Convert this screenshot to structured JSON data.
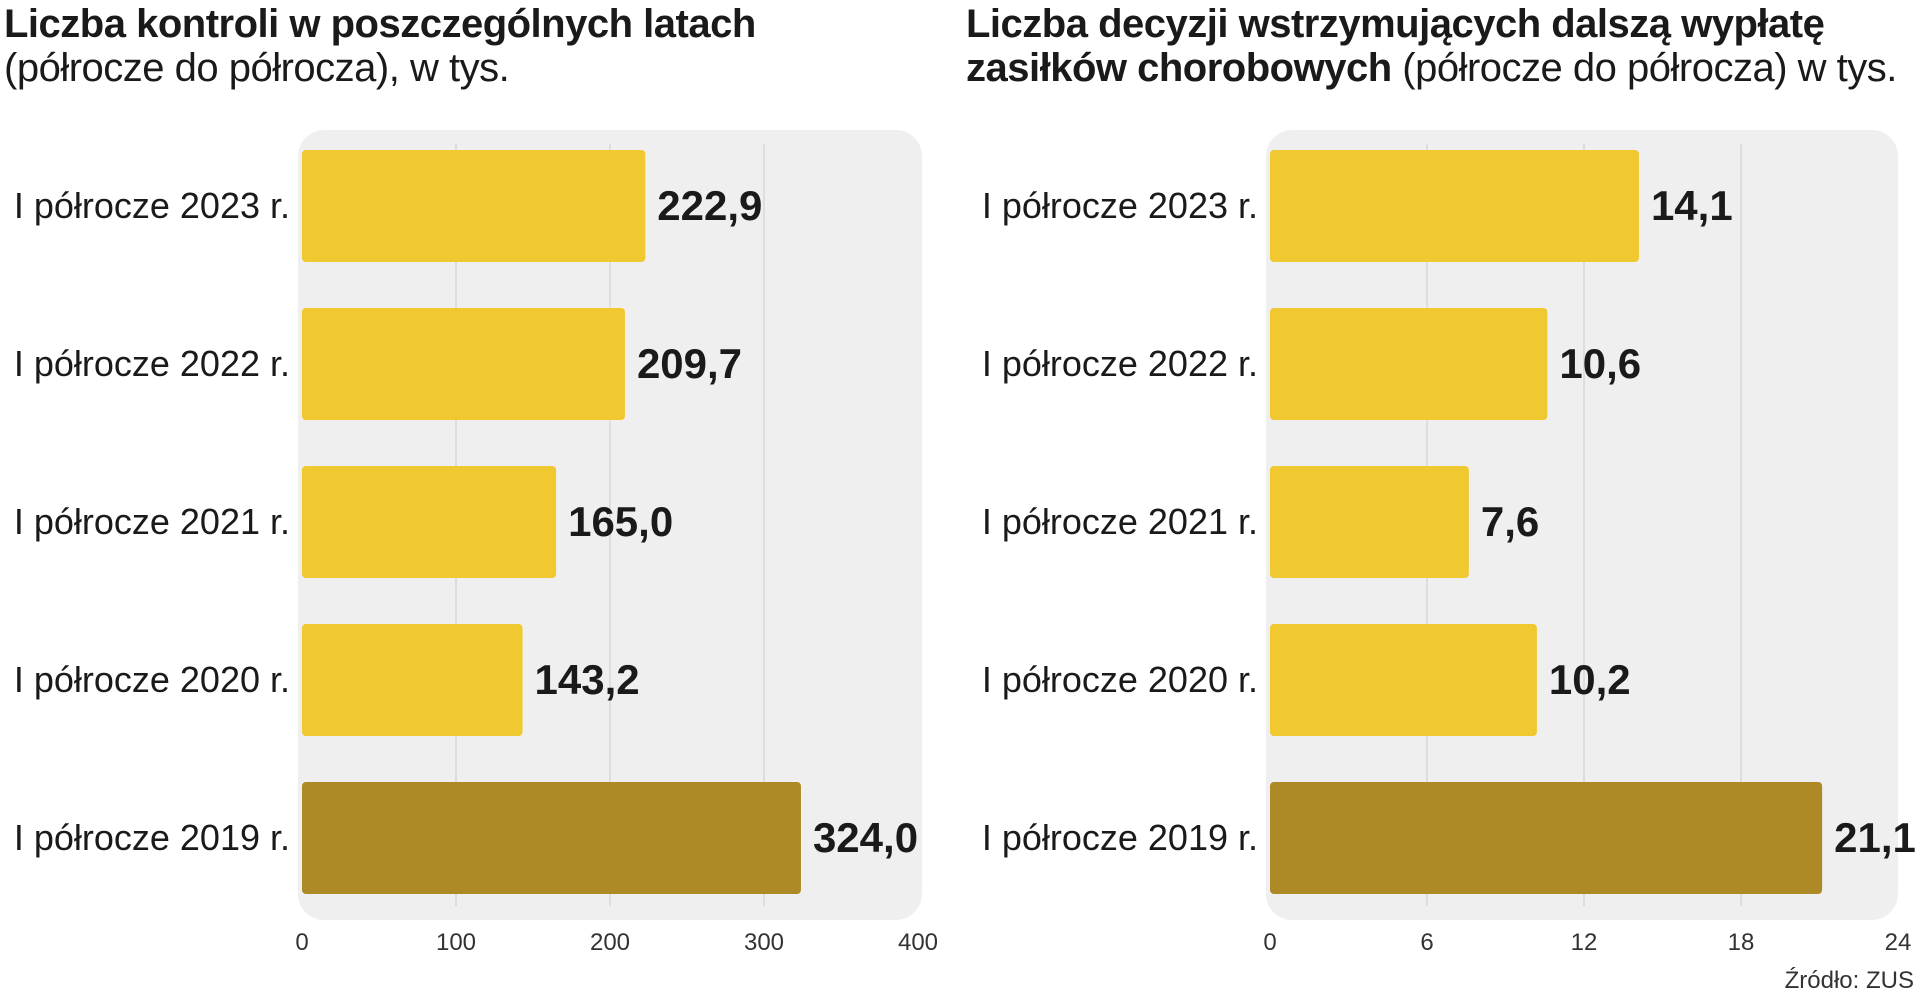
{
  "accent_colors": {
    "bar": "#f0c830",
    "bar_highlight": "#ad8a26",
    "panel": "#efefef",
    "grid": "#d8d8d8"
  },
  "chart_data": [
    {
      "type": "bar",
      "orientation": "horizontal",
      "title": "Liczba kontroli w poszczególnych latach",
      "subtitle": "(półrocze do półrocza), w tys.",
      "categories": [
        "I półrocze 2023 r.",
        "I półrocze 2022 r.",
        "I półrocze 2021 r.",
        "I półrocze 2020 r.",
        "I półrocze 2019 r."
      ],
      "values": [
        222.9,
        209.7,
        165.0,
        143.2,
        324.0
      ],
      "value_labels": [
        "222,9",
        "209,7",
        "165,0",
        "143,2",
        "324,0"
      ],
      "highlight_index": 4,
      "xlim": [
        0,
        400
      ],
      "xticks": [
        0,
        100,
        200,
        300,
        400
      ],
      "grid": true
    },
    {
      "type": "bar",
      "orientation": "horizontal",
      "title": "Liczba decyzji wstrzymujących dalszą wypłatę zasiłków chorobowych",
      "subtitle": "(półrocze do półrocza) w tys.",
      "categories": [
        "I półrocze 2023 r.",
        "I półrocze 2022 r.",
        "I półrocze 2021 r.",
        "I półrocze 2020 r.",
        "I półrocze 2019 r."
      ],
      "values": [
        14.1,
        10.6,
        7.6,
        10.2,
        21.1
      ],
      "value_labels": [
        "14,1",
        "10,6",
        "7,6",
        "10,2",
        "21,1"
      ],
      "highlight_index": 4,
      "xlim": [
        0,
        24
      ],
      "xticks": [
        0,
        6,
        12,
        18,
        24
      ],
      "grid": true
    }
  ],
  "source": "Źródło: ZUS"
}
